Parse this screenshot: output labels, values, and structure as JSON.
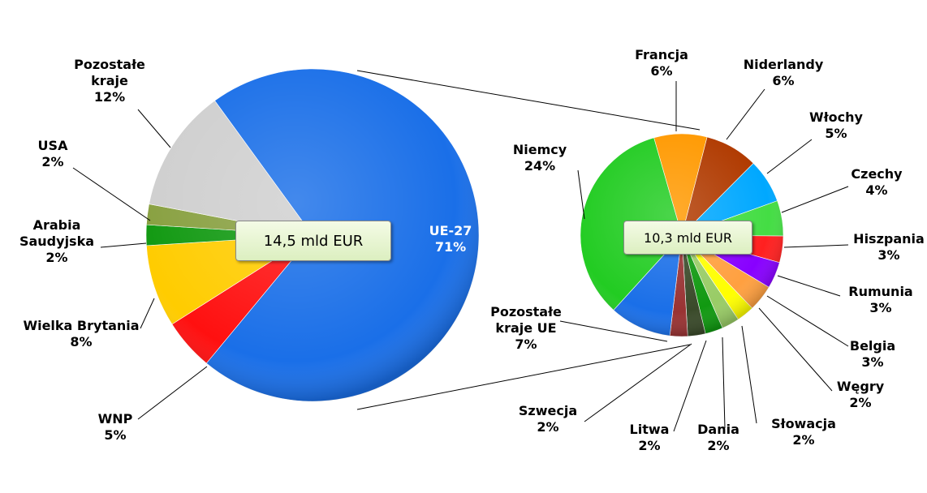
{
  "chart_data": [
    {
      "type": "pie",
      "annotation": "14,5 mld EUR",
      "categories": [
        "UE-27",
        "WNP",
        "Wielka Brytania",
        "Arabia Saudyjska",
        "USA",
        "Pozostałe kraje"
      ],
      "values": [
        71,
        5,
        8,
        2,
        2,
        12
      ],
      "value_labels": [
        "71%",
        "5%",
        "8%",
        "2%",
        "2%",
        "12%"
      ],
      "colors": [
        "#1a6fe8",
        "#ff1010",
        "#ffcc00",
        "#119911",
        "#88a040",
        "#cfcfcf"
      ]
    },
    {
      "type": "pie",
      "annotation": "10,3 mld EUR",
      "categories": [
        "Francja",
        "Niderlandy",
        "Włochy",
        "Czechy",
        "Hiszpania",
        "Rumunia",
        "Belgia",
        "Węgry",
        "Słowacja",
        "Dania",
        "Litwa",
        "Szwecja",
        "Pozostałe kraje UE",
        "Niemcy"
      ],
      "values": [
        6,
        6,
        5,
        4,
        3,
        3,
        3,
        2,
        2,
        2,
        2,
        2,
        7,
        24
      ],
      "value_labels": [
        "6%",
        "6%",
        "5%",
        "4%",
        "3%",
        "3%",
        "3%",
        "2%",
        "2%",
        "2%",
        "2%",
        "2%",
        "7%",
        "24%"
      ],
      "colors": [
        "#ff9900",
        "#b03a00",
        "#00a8ff",
        "#44dd44",
        "#ff2020",
        "#8800ff",
        "#ffa040",
        "#ffff00",
        "#99cc66",
        "#119911",
        "#3a4a2a",
        "#993333",
        "#1a6fe8",
        "#22cc22"
      ]
    }
  ]
}
